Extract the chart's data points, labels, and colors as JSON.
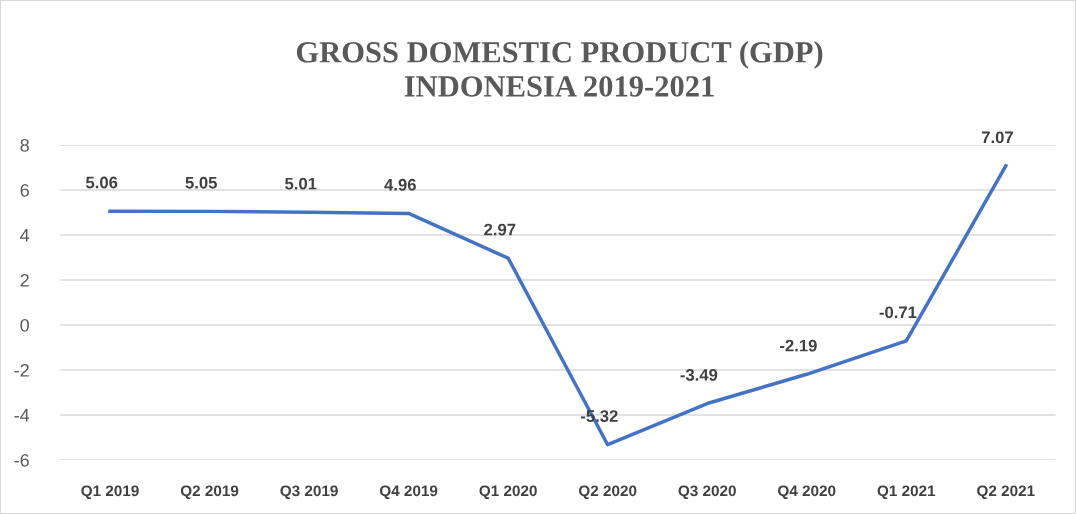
{
  "chart_data": {
    "type": "line",
    "title": "GROSS DOMESTIC PRODUCT (GDP)\nINDONESIA 2019-2021",
    "categories": [
      "Q1 2019",
      "Q2 2019",
      "Q3 2019",
      "Q4 2019",
      "Q1 2020",
      "Q2 2020",
      "Q3 2020",
      "Q4 2020",
      "Q1 2021",
      "Q2 2021"
    ],
    "series": [
      {
        "color": "#4472c4",
        "values": [
          5.06,
          5.05,
          5.01,
          4.96,
          2.97,
          -5.32,
          -3.49,
          -2.19,
          -0.71,
          7.07
        ]
      }
    ],
    "ylim": [
      -6,
      8
    ],
    "yticks": [
      -6,
      -4,
      -2,
      0,
      2,
      4,
      6,
      8
    ],
    "grid": "y",
    "data_labels": true,
    "legend": false,
    "marker": "none",
    "line_style": "solid"
  }
}
